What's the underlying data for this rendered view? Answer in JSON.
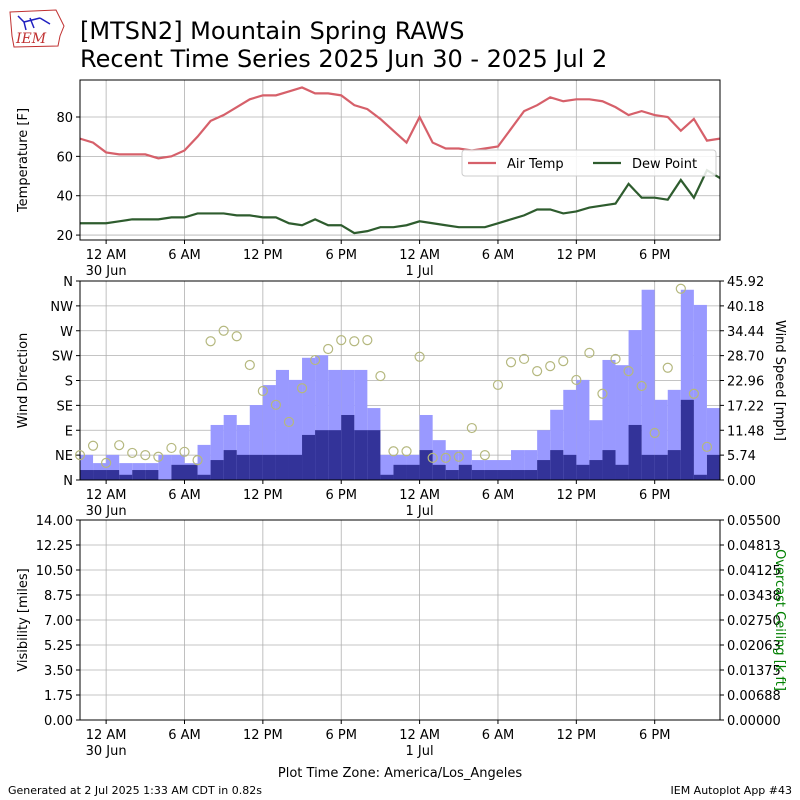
{
  "logo_text": "IEM",
  "footer_left": "Generated at 2 Jul 2025 1:33 AM CDT in 0.82s",
  "footer_right": "IEM Autoplot App #43",
  "chart_data": [
    {
      "type": "line",
      "title": "[MTSN2] Mountain Spring RAWS",
      "subtitle": "Recent Time Series 2025 Jun 30 - 2025 Jul 2",
      "ylabel": "Temperature [F]",
      "grid": true,
      "legend": "center right",
      "x": [
        "Jun 29 22:00",
        "Jun 29 23:00",
        "Jun 30 00:00",
        "Jun 30 01:00",
        "Jun 30 02:00",
        "Jun 30 03:00",
        "Jun 30 04:00",
        "Jun 30 05:00",
        "Jun 30 06:00",
        "Jun 30 07:00",
        "Jun 30 08:00",
        "Jun 30 09:00",
        "Jun 30 10:00",
        "Jun 30 11:00",
        "Jun 30 12:00",
        "Jun 30 13:00",
        "Jun 30 14:00",
        "Jun 30 15:00",
        "Jun 30 16:00",
        "Jun 30 17:00",
        "Jun 30 18:00",
        "Jun 30 19:00",
        "Jun 30 20:00",
        "Jun 30 21:00",
        "Jun 30 22:00",
        "Jun 30 23:00",
        "Jul 1 00:00",
        "Jul 1 01:00",
        "Jul 1 02:00",
        "Jul 1 03:00",
        "Jul 1 04:00",
        "Jul 1 05:00",
        "Jul 1 06:00",
        "Jul 1 07:00",
        "Jul 1 08:00",
        "Jul 1 09:00",
        "Jul 1 10:00",
        "Jul 1 11:00",
        "Jul 1 12:00",
        "Jul 1 13:00",
        "Jul 1 14:00",
        "Jul 1 15:00",
        "Jul 1 16:00",
        "Jul 1 17:00",
        "Jul 1 18:00",
        "Jul 1 19:00",
        "Jul 1 20:00",
        "Jul 1 21:00",
        "Jul 1 22:00",
        "Jul 1 23:00"
      ],
      "xlim": [
        "Jun 29 22:00",
        "Jul 1 23:00"
      ],
      "xticks": [
        {
          "value": "Jun 30 00:00",
          "label": "12 AM\n30 Jun"
        },
        {
          "value": "Jun 30 06:00",
          "label": "6 AM"
        },
        {
          "value": "Jun 30 12:00",
          "label": "12 PM"
        },
        {
          "value": "Jun 30 18:00",
          "label": "6 PM"
        },
        {
          "value": "Jul 1 00:00",
          "label": "12 AM\n1 Jul"
        },
        {
          "value": "Jul 1 06:00",
          "label": "6 AM"
        },
        {
          "value": "Jul 1 12:00",
          "label": "12 PM"
        },
        {
          "value": "Jul 1 18:00",
          "label": "6 PM"
        }
      ],
      "ylim": [
        17.5,
        98.8
      ],
      "yticks": [
        20,
        40,
        60,
        80
      ],
      "series": [
        {
          "name": "Air Temp",
          "color": "#d6606a",
          "values": [
            69,
            67,
            62,
            61,
            61,
            61,
            59,
            60,
            63,
            70,
            78,
            81,
            85,
            89,
            91,
            91,
            93,
            95,
            92,
            92,
            91,
            86,
            84,
            79,
            73,
            67,
            80,
            67,
            64,
            64,
            63,
            64,
            65,
            74,
            83,
            86,
            90,
            88,
            89,
            89,
            88,
            85,
            81,
            83,
            81,
            80,
            73,
            79,
            68,
            69
          ]
        },
        {
          "name": "Dew Point",
          "color": "#2e5c2e",
          "values": [
            26,
            26,
            26,
            27,
            28,
            28,
            28,
            29,
            29,
            31,
            31,
            31,
            30,
            30,
            29,
            29,
            26,
            25,
            28,
            25,
            25,
            21,
            22,
            24,
            24,
            25,
            27,
            26,
            25,
            24,
            24,
            24,
            26,
            28,
            30,
            33,
            33,
            31,
            32,
            34,
            35,
            36,
            46,
            39,
            39,
            38,
            48,
            39,
            53,
            49
          ]
        }
      ]
    },
    {
      "type": "mixed",
      "ylabel": "Wind Direction",
      "y2label": "Wind Speed [mph]",
      "grid": true,
      "x": [
        "Jun 29 22:00",
        "Jun 29 23:00",
        "Jun 30 00:00",
        "Jun 30 01:00",
        "Jun 30 02:00",
        "Jun 30 03:00",
        "Jun 30 04:00",
        "Jun 30 05:00",
        "Jun 30 06:00",
        "Jun 30 07:00",
        "Jun 30 08:00",
        "Jun 30 09:00",
        "Jun 30 10:00",
        "Jun 30 11:00",
        "Jun 30 12:00",
        "Jun 30 13:00",
        "Jun 30 14:00",
        "Jun 30 15:00",
        "Jun 30 16:00",
        "Jun 30 17:00",
        "Jun 30 18:00",
        "Jun 30 19:00",
        "Jun 30 20:00",
        "Jun 30 21:00",
        "Jun 30 22:00",
        "Jun 30 23:00",
        "Jul 1 00:00",
        "Jul 1 01:00",
        "Jul 1 02:00",
        "Jul 1 03:00",
        "Jul 1 04:00",
        "Jul 1 05:00",
        "Jul 1 06:00",
        "Jul 1 07:00",
        "Jul 1 08:00",
        "Jul 1 09:00",
        "Jul 1 10:00",
        "Jul 1 11:00",
        "Jul 1 12:00",
        "Jul 1 13:00",
        "Jul 1 14:00",
        "Jul 1 15:00",
        "Jul 1 16:00",
        "Jul 1 17:00",
        "Jul 1 18:00",
        "Jul 1 19:00",
        "Jul 1 20:00",
        "Jul 1 21:00",
        "Jul 1 22:00",
        "Jul 1 23:00"
      ],
      "xlim": [
        "Jun 29 22:00",
        "Jul 1 23:00"
      ],
      "xticks": [
        {
          "value": "Jun 30 00:00",
          "label": "12 AM\n30 Jun"
        },
        {
          "value": "Jun 30 06:00",
          "label": "6 AM"
        },
        {
          "value": "Jun 30 12:00",
          "label": "12 PM"
        },
        {
          "value": "Jun 30 18:00",
          "label": "6 PM"
        },
        {
          "value": "Jul 1 00:00",
          "label": "12 AM\n1 Jul"
        },
        {
          "value": "Jul 1 06:00",
          "label": "6 AM"
        },
        {
          "value": "Jul 1 12:00",
          "label": "12 PM"
        },
        {
          "value": "Jul 1 18:00",
          "label": "6 PM"
        }
      ],
      "ylim": [
        0,
        360
      ],
      "yticks": [
        {
          "value": 0,
          "label": "N"
        },
        {
          "value": 45,
          "label": "NE"
        },
        {
          "value": 90,
          "label": "E"
        },
        {
          "value": 135,
          "label": "SE"
        },
        {
          "value": 180,
          "label": "S"
        },
        {
          "value": 225,
          "label": "SW"
        },
        {
          "value": 270,
          "label": "W"
        },
        {
          "value": 315,
          "label": "NW"
        },
        {
          "value": 360,
          "label": "N"
        }
      ],
      "y2lim": [
        0,
        45.92
      ],
      "y2ticks": [
        {
          "value": 0,
          "label": "0.00"
        },
        5.74,
        11.48,
        17.22,
        22.96,
        {
          "value": 28.7,
          "label": "28.70"
        },
        34.44,
        40.18,
        45.92
      ],
      "series": [
        {
          "type": "bar",
          "axis": "y2",
          "color": "#9999ff",
          "values": [
            5.8,
            3.9,
            5.8,
            3.9,
            3.9,
            3.9,
            5.8,
            5.8,
            3.9,
            8.1,
            12.7,
            15.0,
            12.7,
            17.3,
            21.9,
            25.4,
            23.1,
            28.2,
            28.8,
            25.4,
            25.4,
            25.4,
            16.6,
            5.8,
            5.8,
            5.8,
            15.0,
            9.2,
            6.9,
            6.9,
            4.6,
            4.6,
            4.6,
            6.9,
            6.9,
            11.5,
            16.2,
            20.8,
            23.1,
            13.8,
            27.7,
            26.5,
            34.6,
            43.9,
            18.5,
            20.8,
            43.9,
            40.4,
            16.6,
            16.6
          ]
        },
        {
          "type": "bar",
          "axis": "y2",
          "color": "#333399",
          "values": [
            2.3,
            2.3,
            2.3,
            1.2,
            2.3,
            2.3,
            0,
            3.5,
            3.5,
            1.2,
            4.6,
            6.9,
            5.8,
            5.8,
            5.8,
            5.8,
            5.8,
            10.4,
            11.5,
            11.5,
            15.0,
            11.5,
            11.5,
            1.2,
            3.5,
            3.5,
            6.9,
            3.5,
            2.3,
            3.5,
            2.3,
            2.3,
            2.3,
            2.3,
            2.3,
            4.6,
            6.9,
            5.8,
            3.5,
            4.6,
            6.9,
            3.5,
            12.7,
            5.8,
            5.8,
            6.9,
            18.5,
            1.2,
            5.8,
            3.5
          ]
        },
        {
          "type": "scatter",
          "color": "#b5b87f",
          "values": [
            45,
            62,
            31,
            63,
            49,
            45,
            42,
            58,
            51,
            36,
            251,
            270,
            260,
            208,
            161,
            136,
            105,
            166,
            217,
            237,
            253,
            251,
            253,
            188,
            52,
            52,
            223,
            40,
            40,
            42,
            94,
            45,
            172,
            213,
            219,
            197,
            206,
            215,
            181,
            230,
            156,
            219,
            197,
            170,
            85,
            203,
            346,
            156,
            60,
            null
          ]
        }
      ]
    },
    {
      "type": "line",
      "ylabel": "Visibility [miles]",
      "y2label": "Overcast Ceiling [k ft]",
      "y2label_color": "green",
      "xlabel": "Plot Time Zone: America/Los_Angeles",
      "grid": true,
      "xlim": [
        "Jun 29 22:00",
        "Jul 1 23:00"
      ],
      "xticks": [
        {
          "value": "Jun 30 00:00",
          "label": "12 AM\n30 Jun"
        },
        {
          "value": "Jun 30 06:00",
          "label": "6 AM"
        },
        {
          "value": "Jun 30 12:00",
          "label": "12 PM"
        },
        {
          "value": "Jun 30 18:00",
          "label": "6 PM"
        },
        {
          "value": "Jul 1 00:00",
          "label": "12 AM\n1 Jul"
        },
        {
          "value": "Jul 1 06:00",
          "label": "6 AM"
        },
        {
          "value": "Jul 1 12:00",
          "label": "12 PM"
        },
        {
          "value": "Jul 1 18:00",
          "label": "6 PM"
        }
      ],
      "ylim": [
        0,
        14
      ],
      "yticks": [
        {
          "value": 0,
          "label": "0.00"
        },
        1.75,
        {
          "value": 3.5,
          "label": "3.50"
        },
        5.25,
        {
          "value": 7,
          "label": "7.00"
        },
        8.75,
        {
          "value": 10.5,
          "label": "10.50"
        },
        12.25,
        {
          "value": 14,
          "label": "14.00"
        }
      ],
      "y2lim": [
        0,
        0.055
      ],
      "y2ticks": [
        {
          "value": 0,
          "label": "0.00000"
        },
        {
          "value": 0.006875,
          "label": "0.00688"
        },
        0.01375,
        {
          "value": 0.020625,
          "label": "0.02063"
        },
        {
          "value": 0.0275,
          "label": "0.02750"
        },
        {
          "value": 0.034375,
          "label": "0.03438"
        },
        0.04125,
        {
          "value": 0.048125,
          "label": "0.04813"
        },
        {
          "value": 0.055,
          "label": "0.05500"
        }
      ]
    }
  ]
}
